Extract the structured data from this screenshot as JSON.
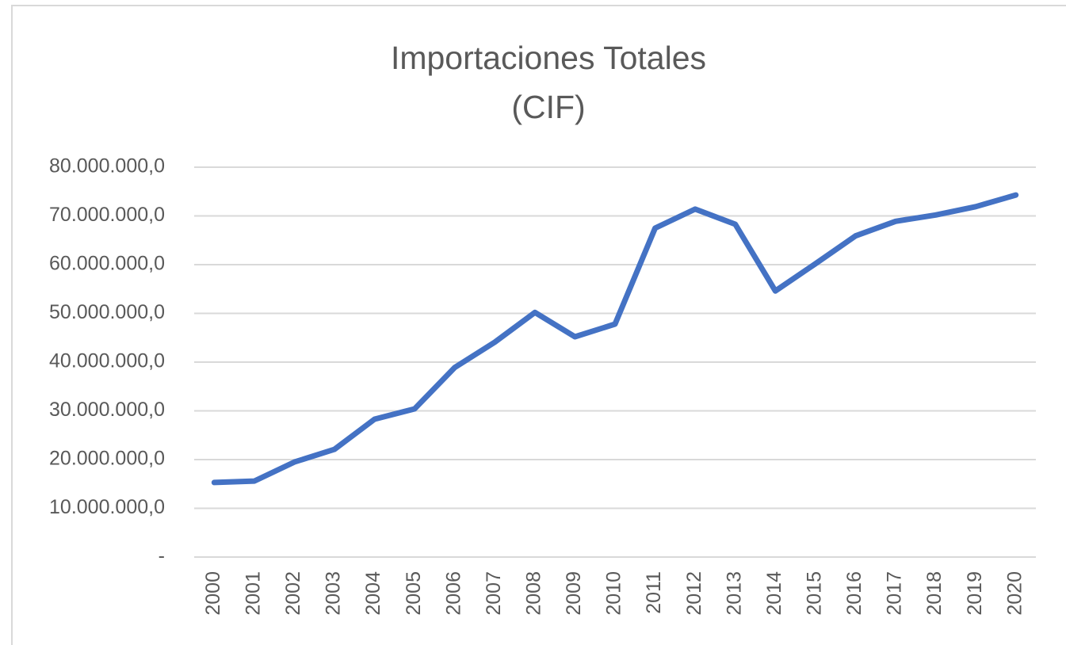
{
  "chart_data": {
    "type": "line",
    "title": "Importaciones Totales (CIF)",
    "categories": [
      "2000",
      "2001",
      "2002",
      "2003",
      "2004",
      "2005",
      "2006",
      "2007",
      "2008",
      "2009",
      "2010",
      "2011",
      "2012",
      "2013",
      "2014",
      "2015",
      "2016",
      "2017",
      "2018",
      "2019",
      "2020"
    ],
    "values": [
      15300000,
      15600000,
      19500000,
      22100000,
      28300000,
      30400000,
      38900000,
      44100000,
      50200000,
      45200000,
      47800000,
      67500000,
      71400000,
      68300000,
      54600000,
      60200000,
      65900000,
      68900000,
      70200000,
      71900000,
      74300000
    ],
    "color": "#4472c4",
    "ylim": [
      0,
      80000000
    ],
    "yticks": [
      {
        "value": 0,
        "label": "-"
      },
      {
        "value": 10000000,
        "label": "10.000.000,0"
      },
      {
        "value": 20000000,
        "label": "20.000.000,0"
      },
      {
        "value": 30000000,
        "label": "30.000.000,0"
      },
      {
        "value": 40000000,
        "label": "40.000.000,0"
      },
      {
        "value": 50000000,
        "label": "50.000.000,0"
      },
      {
        "value": 60000000,
        "label": "60.000.000,0"
      },
      {
        "value": 70000000,
        "label": "70.000.000,0"
      },
      {
        "value": 80000000,
        "label": "80.000.000,0"
      }
    ],
    "grid": true
  }
}
